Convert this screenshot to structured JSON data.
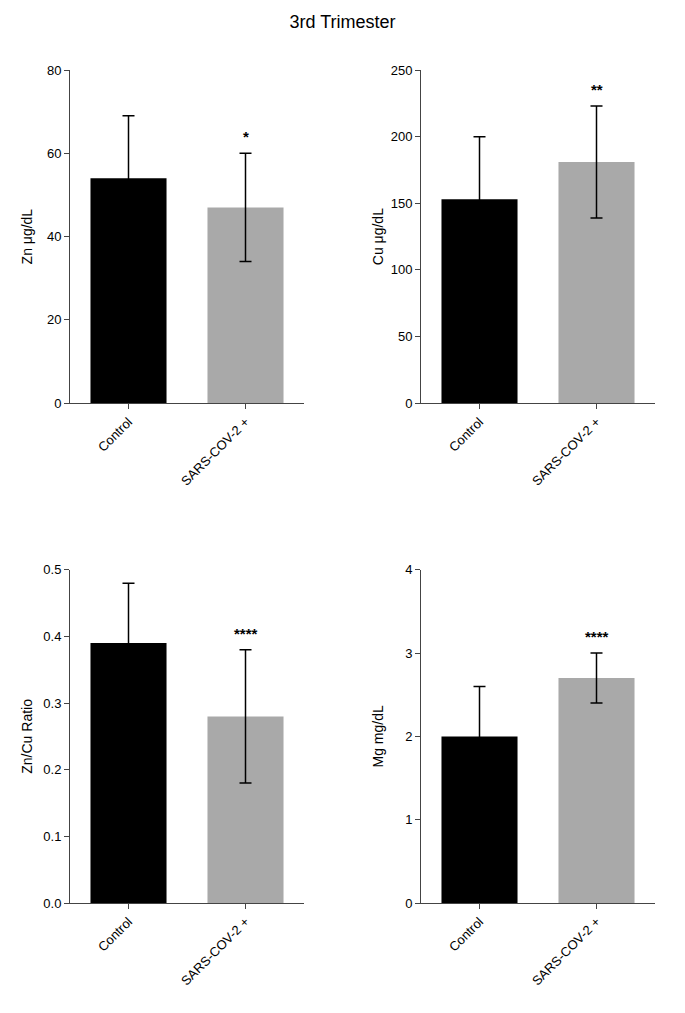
{
  "title": "3rd Trimester",
  "chart_data": [
    {
      "type": "bar",
      "ylabel": "Zn μg/dL",
      "categories": [
        "Control",
        "SARS-COV-2 +"
      ],
      "values": [
        54.0,
        47.0
      ],
      "errors": [
        15.0,
        13.0
      ],
      "colors": [
        "#000000",
        "#a9a9a9"
      ],
      "ylim": [
        0,
        80
      ],
      "yticks": [
        0,
        20,
        40,
        60,
        80
      ],
      "grid": false,
      "annotations": [
        {
          "x": "SARS-COV-2 +",
          "text": "*"
        }
      ]
    },
    {
      "type": "bar",
      "ylabel": "Cu μg/dL",
      "categories": [
        "Control",
        "SARS-COV-2 +"
      ],
      "values": [
        153.0,
        181.0
      ],
      "errors": [
        47.0,
        42.0
      ],
      "colors": [
        "#000000",
        "#a9a9a9"
      ],
      "ylim": [
        0,
        250
      ],
      "yticks": [
        0,
        50,
        100,
        150,
        200,
        250
      ],
      "grid": false,
      "annotations": [
        {
          "x": "SARS-COV-2 +",
          "text": "**"
        }
      ]
    },
    {
      "type": "bar",
      "ylabel": "Zn/Cu Ratio",
      "categories": [
        "Control",
        "SARS-COV-2 +"
      ],
      "values": [
        0.39,
        0.28
      ],
      "errors": [
        0.09,
        0.1
      ],
      "colors": [
        "#000000",
        "#a9a9a9"
      ],
      "ylim": [
        0.0,
        0.5
      ],
      "yticks": [
        {
          "value": 0.0,
          "label": "0.0"
        },
        0.1,
        0.2,
        0.3,
        0.4,
        0.5
      ],
      "grid": false,
      "annotations": [
        {
          "x": "SARS-COV-2 +",
          "text": "****"
        }
      ]
    },
    {
      "type": "bar",
      "ylabel": "Mg mg/dL",
      "categories": [
        "Control",
        "SARS-COV-2 +"
      ],
      "values": [
        2.0,
        2.7
      ],
      "errors": [
        0.6,
        0.3
      ],
      "colors": [
        "#000000",
        "#a9a9a9"
      ],
      "ylim": [
        0,
        4
      ],
      "yticks": [
        0,
        1,
        2,
        3,
        4
      ],
      "grid": false,
      "annotations": [
        {
          "x": "SARS-COV-2 +",
          "text": "****"
        }
      ]
    }
  ]
}
